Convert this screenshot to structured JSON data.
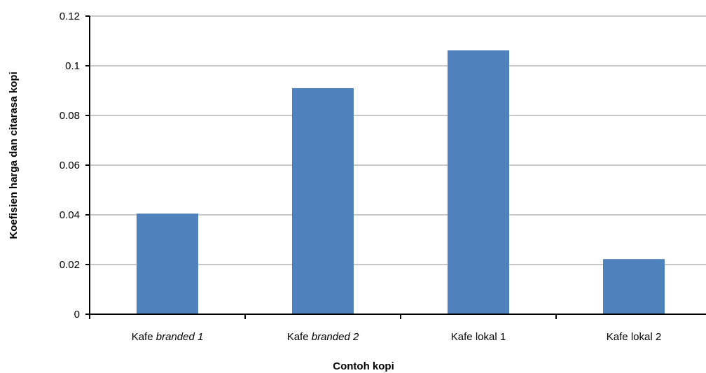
{
  "chart_data": {
    "type": "bar",
    "categories": [
      "Kafe branded 1",
      "Kafe branded 2",
      "Kafe lokal 1",
      "Kafe lokal 2"
    ],
    "category_label_parts": [
      [
        {
          "text": "Kafe ",
          "italic": false
        },
        {
          "text": "branded 1",
          "italic": true
        }
      ],
      [
        {
          "text": "Kafe ",
          "italic": false
        },
        {
          "text": "branded 2",
          "italic": true
        }
      ],
      [
        {
          "text": "Kafe lokal 1",
          "italic": false
        }
      ],
      [
        {
          "text": "Kafe lokal 2",
          "italic": false
        }
      ]
    ],
    "values": [
      0.0405,
      0.091,
      0.1062,
      0.0222
    ],
    "xlabel": "Contoh kopi",
    "ylabel": "Koefisien harga dan citarasa kopi",
    "ylim": [
      0,
      0.12
    ],
    "yticks": [
      0,
      0.02,
      0.04,
      0.06,
      0.08,
      0.1,
      0.12
    ],
    "ytick_labels": [
      "0",
      "0.02",
      "0.04",
      "0.06",
      "0.08",
      "0.1",
      "0.12"
    ],
    "grid": true,
    "legend": "none",
    "bar_color": "#4f81bd",
    "grid_color": "#a6a6a6",
    "axis_color": "#000000"
  }
}
